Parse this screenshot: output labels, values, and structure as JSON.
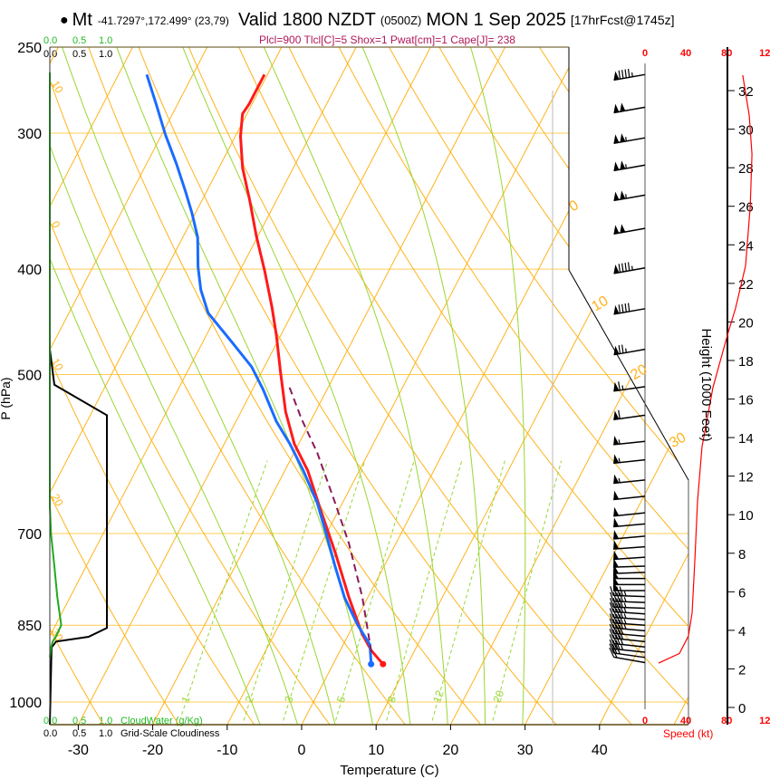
{
  "header": {
    "bullet": "●",
    "station": "Mt",
    "coords": "-41.7297°,172.499° (23,79)",
    "valid": "Valid 1800 NZDT",
    "utc": "(0500Z)",
    "date": "MON 1 Sep 2025",
    "forecast": "[17hrFcst@1745z]",
    "indices": "Plcl=900 Tlcl[C]=5 Shox=1 Pwat[cm]=1 Cape[J]= 238"
  },
  "cloud_scale": {
    "top_green": [
      "0.0",
      "0.5",
      "1.0"
    ],
    "top_black": [
      "0.0",
      "0.5",
      "1.0"
    ],
    "bottom_green": [
      "0.0",
      "0.5",
      "1.0"
    ],
    "bottom_black": [
      "0.0",
      "0.5",
      "1.0"
    ],
    "cloudwater_label": "CloudWater (g/Kg)",
    "cloudiness_label": "Grid-Scale Cloudiness"
  },
  "colors": {
    "temperature": "#ff1a1a",
    "dewpoint": "#1a6cff",
    "parcel": "#8b1a5a",
    "isotherm": "#ffb31a",
    "moist_adiabat": "#99d633",
    "mixing_ratio": "#99d633",
    "cloudwater": "#22aa22",
    "cloudiness": "#000000",
    "speed": "#ff0000",
    "indices": "#b0185a"
  },
  "chart_data": {
    "type": "line",
    "title": "Skew-T log-P sounding",
    "xlabel": "Temperature (C)",
    "ylabel": "P (hPa)",
    "xlim": [
      -34,
      36
    ],
    "ylim": [
      1049,
      250
    ],
    "x_ticks": [
      "-30",
      "-20",
      "-10",
      "0",
      "10",
      "20",
      "30",
      "40"
    ],
    "x_tick_values": [
      -30,
      -20,
      -10,
      0,
      10,
      20,
      30,
      40
    ],
    "p_ticks": [
      "250",
      "300",
      "400",
      "500",
      "700",
      "850",
      "1000"
    ],
    "p_tick_values": [
      250,
      300,
      400,
      500,
      700,
      850,
      1000
    ],
    "isotherm_labels": [
      {
        "t": 0,
        "text": "0"
      },
      {
        "t": 10,
        "text": "10"
      },
      {
        "t": 20,
        "text": "20"
      },
      {
        "t": 30,
        "text": "30"
      }
    ],
    "dry_adiabat_labels": [
      {
        "theta_c": 10,
        "text": "10"
      },
      {
        "theta_c": 0,
        "text": "0"
      },
      {
        "theta_c": -10,
        "text": "10"
      },
      {
        "theta_c": -20,
        "text": "20"
      },
      {
        "theta_c": -30,
        "text": "30"
      }
    ],
    "mixing_ratio_lines": [
      {
        "w": 1,
        "text": "1"
      },
      {
        "w": 2,
        "text": "2"
      },
      {
        "w": 3,
        "text": "3"
      },
      {
        "w": 5,
        "text": "5"
      },
      {
        "w": 8,
        "text": "8"
      },
      {
        "w": 12,
        "text": "12"
      },
      {
        "w": 20,
        "text": "20"
      }
    ],
    "moist_adiabat_start_temps_1000hpa": [
      -5,
      0,
      5,
      10,
      15,
      20,
      25,
      30
    ],
    "series": [
      {
        "name": "Temperature",
        "p": [
          923,
          897,
          866,
          802,
          729,
          669,
          613,
          579,
          541,
          497,
          460,
          434,
          402,
          373,
          345,
          323,
          302,
          288,
          282,
          265
        ],
        "t": [
          6.7,
          4.2,
          1.8,
          -2.5,
          -7.5,
          -12.2,
          -16.9,
          -20.6,
          -24.0,
          -27.5,
          -30.6,
          -33.1,
          -36.6,
          -40.2,
          -43.7,
          -46.8,
          -49.3,
          -50.6,
          -50.4,
          -50.4
        ]
      },
      {
        "name": "Dewpoint",
        "p": [
          923,
          886,
          850,
          802,
          750,
          701,
          656,
          613,
          579,
          552,
          516,
          492,
          469,
          439,
          418,
          398,
          374,
          355,
          339,
          320,
          301,
          282,
          265
        ],
        "t": [
          5.1,
          3.6,
          0.6,
          -3.1,
          -6.6,
          -10.0,
          -13.4,
          -17.5,
          -21.2,
          -24.6,
          -28.6,
          -31.7,
          -35.7,
          -41.3,
          -43.9,
          -45.9,
          -48.0,
          -50.5,
          -52.9,
          -56.0,
          -59.5,
          -62.9,
          -66.2
        ]
      },
      {
        "name": "Parcel",
        "p": [
          900,
          802,
          715,
          656,
          590,
          549,
          511
        ],
        "t": [
          4.3,
          -0.7,
          -6.3,
          -11.0,
          -16.9,
          -21.4,
          -25.5
        ]
      }
    ],
    "cloudiness": {
      "p": [
        474,
        511,
        545,
        855,
        871,
        880,
        891,
        1049
      ],
      "fraction": [
        0,
        0.08,
        1.0,
        1.0,
        0.68,
        0.11,
        0.03,
        0
      ]
    },
    "cloudwater": {
      "p": [
        474,
        660,
        700,
        750,
        800,
        850,
        870,
        880,
        891,
        910
      ],
      "gkg": [
        0,
        0,
        0.02,
        0.08,
        0.13,
        0.2,
        0.11,
        0.05,
        0.02,
        0
      ]
    },
    "winds": {
      "p": [
        265,
        284,
        303,
        321,
        342,
        367,
        399,
        435,
        474,
        513,
        545,
        576,
        599,
        625,
        647,
        670,
        686,
        704,
        720,
        736,
        750,
        760,
        770,
        780,
        790,
        800,
        810,
        820,
        830,
        840,
        850,
        860,
        870,
        880,
        890,
        900,
        910,
        920
      ],
      "kt": [
        95,
        100,
        105,
        105,
        105,
        100,
        95,
        90,
        75,
        65,
        60,
        55,
        55,
        55,
        50,
        50,
        50,
        50,
        50,
        50,
        50,
        50,
        50,
        50,
        50,
        45,
        45,
        45,
        45,
        45,
        45,
        45,
        40,
        40,
        40,
        35,
        30,
        20
      ],
      "dir": [
        260,
        260,
        260,
        260,
        260,
        260,
        260,
        260,
        260,
        262,
        262,
        264,
        264,
        264,
        264,
        264,
        265,
        265,
        266,
        266,
        268,
        268,
        270,
        270,
        270,
        272,
        272,
        272,
        274,
        274,
        274,
        275,
        275,
        276,
        276,
        276,
        278,
        280
      ]
    },
    "speed_profile": {
      "xlabel": "Speed (kt)",
      "x_ticks": [
        "0",
        "40",
        "80",
        "120"
      ],
      "x_tick_values": [
        0,
        40,
        80,
        120
      ],
      "height_kft": [
        32.8,
        30.7,
        28.7,
        26.0,
        22.9,
        20.7,
        19.3,
        16.6,
        13.5,
        10.7,
        7.6,
        4.9,
        3.7,
        2.8,
        2.3
      ],
      "kt": [
        95.7,
        102,
        104.7,
        103,
        98.4,
        88.6,
        80.6,
        66.5,
        55.8,
        51.4,
        48.8,
        46.1,
        42.5,
        33.7,
        13.3
      ]
    },
    "height_axis": {
      "label": "Height (1000 Feet)",
      "ticks": [
        "0",
        "2",
        "4",
        "6",
        "8",
        "10",
        "12",
        "14",
        "16",
        "18",
        "20",
        "22",
        "24",
        "26",
        "28",
        "30",
        "32"
      ],
      "tick_values": [
        0,
        2,
        4,
        6,
        8,
        10,
        12,
        14,
        16,
        18,
        20,
        22,
        24,
        26,
        28,
        30,
        32
      ]
    }
  }
}
